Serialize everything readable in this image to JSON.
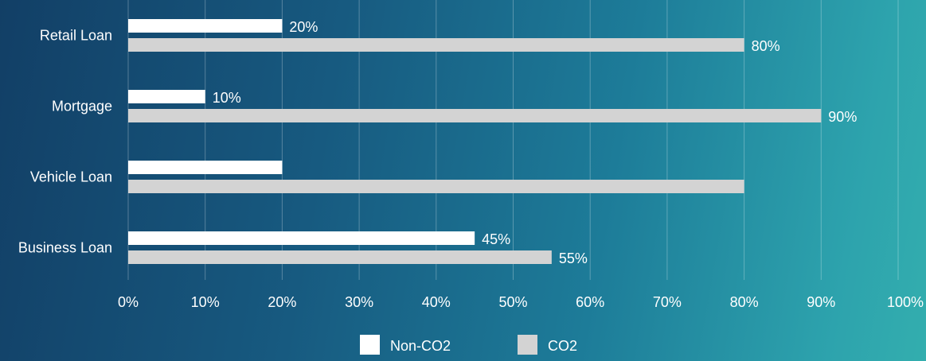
{
  "chart_data": {
    "type": "bar",
    "orientation": "horizontal",
    "categories": [
      "Retail Loan",
      "Mortgage",
      "Vehicle Loan",
      "Business Loan"
    ],
    "series": [
      {
        "name": "Non-CO2",
        "values": [
          20,
          10,
          20,
          45
        ],
        "labels": [
          "20%",
          "10%",
          "",
          "45%"
        ],
        "color": "#ffffff"
      },
      {
        "name": "CO2",
        "values": [
          80,
          90,
          80,
          55
        ],
        "labels": [
          "80%",
          "90%",
          "",
          "55%"
        ],
        "color": "#d3d3d3"
      }
    ],
    "xlim": [
      0,
      100
    ],
    "x_ticks": [
      "0%",
      "10%",
      "20%",
      "30%",
      "40%",
      "50%",
      "60%",
      "70%",
      "80%",
      "90%",
      "100%"
    ],
    "grid": "vertical",
    "legend": "bottom-center",
    "title": "",
    "xlabel": "",
    "ylabel": ""
  }
}
